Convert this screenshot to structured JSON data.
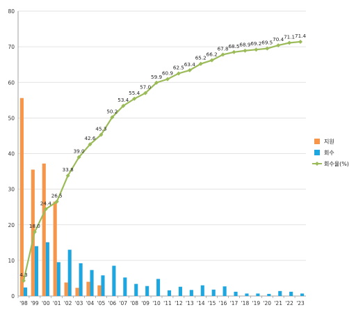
{
  "chart_data": {
    "type": "bar",
    "categories": [
      "'98",
      "'99",
      "'00",
      "'01",
      "'02",
      "'03",
      "'04",
      "'05",
      "'06",
      "'07",
      "'08",
      "'09",
      "'10",
      "'11",
      "'12",
      "'13",
      "'14",
      "'15",
      "'16",
      "'17",
      "'18",
      "'19",
      "'20",
      "'21",
      "'22",
      "'23"
    ],
    "series": [
      {
        "name": "지원",
        "kind": "bar",
        "color": "#F7964A",
        "values": [
          55.6,
          35.5,
          37.2,
          26.5,
          3.8,
          2.3,
          4.0,
          3.0,
          0,
          0,
          0,
          0,
          0,
          0,
          0,
          0,
          0,
          0,
          0,
          0,
          0,
          0,
          0,
          0,
          0,
          0
        ]
      },
      {
        "name": "회수",
        "kind": "bar",
        "color": "#1DA6E0",
        "values": [
          2.4,
          14.0,
          15.1,
          9.5,
          13.0,
          9.2,
          7.3,
          5.8,
          8.5,
          5.2,
          3.4,
          2.8,
          4.8,
          1.6,
          2.6,
          1.7,
          3.0,
          1.8,
          2.7,
          1.2,
          0.7,
          0.7,
          0.6,
          1.4,
          1.2,
          0.7
        ]
      },
      {
        "name": "회수율(%)",
        "kind": "line",
        "color": "#9BBB59",
        "values": [
          4.3,
          18.0,
          24.4,
          26.5,
          33.8,
          39.0,
          42.6,
          45.3,
          50.2,
          53.4,
          55.4,
          57.0,
          59.9,
          60.9,
          62.5,
          63.4,
          65.2,
          66.2,
          67.8,
          68.5,
          68.9,
          69.2,
          69.5,
          70.4,
          71.1,
          71.4
        ],
        "labels": [
          "4.3",
          "18.0",
          "24.4",
          "26.5",
          "33.8",
          "39.0",
          "42.6",
          "45.3",
          "50.2",
          "53.4",
          "55.4",
          "57.0",
          "59.9",
          "60.9",
          "62.5",
          "63.4",
          "65.2",
          "66.2",
          "67.8",
          "68.5",
          "68.9",
          "69.2",
          "69.5",
          "70.4",
          "71.1",
          "71.4"
        ]
      }
    ],
    "ylim": [
      0,
      80
    ],
    "yticks": [
      "0",
      "10",
      "20",
      "30",
      "40",
      "50",
      "60",
      "70",
      "80"
    ],
    "grid": true,
    "legend_placement": "right"
  }
}
